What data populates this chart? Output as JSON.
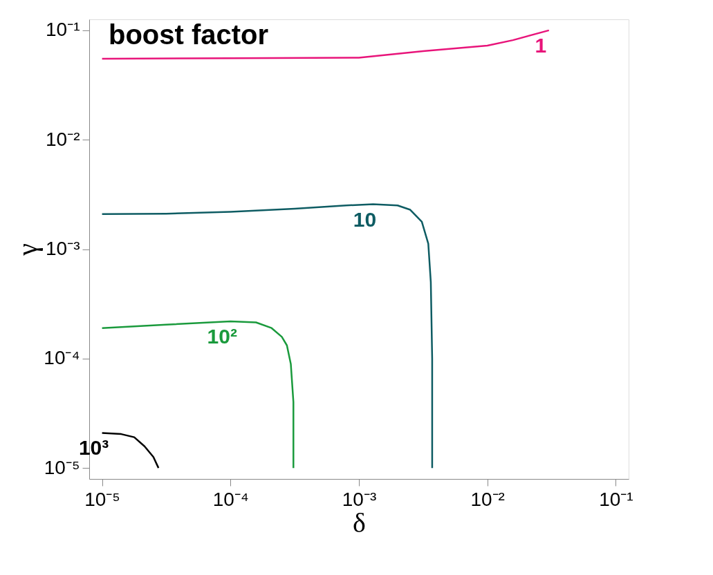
{
  "chart_data": {
    "type": "line",
    "title": "boost factor",
    "xlabel": "δ",
    "ylabel": "γ",
    "log": "xy",
    "grid": false,
    "legend": false,
    "marker": "none",
    "line_style": "solid",
    "xlim": [
      7.94e-06,
      0.126
    ],
    "ylim": [
      7.94e-06,
      0.126
    ],
    "xticks": [
      {
        "value": 1e-05,
        "label": "10⁻⁵"
      },
      {
        "value": 0.0001,
        "label": "10⁻⁴"
      },
      {
        "value": 0.001,
        "label": "10⁻³"
      },
      {
        "value": 0.01,
        "label": "10⁻²"
      },
      {
        "value": 0.1,
        "label": "10⁻¹"
      }
    ],
    "yticks": [
      {
        "value": 1e-05,
        "label": "10⁻⁵"
      },
      {
        "value": 0.0001,
        "label": "10⁻⁴"
      },
      {
        "value": 0.001,
        "label": "10⁻³"
      },
      {
        "value": 0.01,
        "label": "10⁻²"
      },
      {
        "value": 0.1,
        "label": "10⁻¹"
      }
    ],
    "series": [
      {
        "name": "1",
        "color": "#e8147a",
        "x": [
          1e-05,
          0.0001,
          0.001,
          0.00316,
          0.01,
          0.0158,
          0.0302
        ],
        "values": [
          0.055,
          0.0556,
          0.0562,
          0.0646,
          0.0724,
          0.0813,
          0.1
        ]
      },
      {
        "name": "10",
        "color": "#0e5c63",
        "x": [
          1e-05,
          3.16e-05,
          0.0001,
          0.000316,
          0.000794,
          0.00129,
          0.002,
          0.00251,
          0.00309,
          0.00347,
          0.00363,
          0.00372,
          0.00372
        ],
        "values": [
          0.00209,
          0.00211,
          0.00219,
          0.00234,
          0.00251,
          0.00257,
          0.00251,
          0.00229,
          0.00178,
          0.00112,
          0.0005,
          0.0001,
          1e-05
        ]
      },
      {
        "name": "10²",
        "color": "#1a9a3c",
        "x": [
          1e-05,
          3.16e-05,
          0.0001,
          0.000158,
          0.000209,
          0.000251,
          0.000275,
          0.000295,
          0.000309,
          0.000309
        ],
        "values": [
          0.00019,
          0.000204,
          0.000219,
          0.000214,
          0.00019,
          0.000158,
          0.000132,
          8.9e-05,
          4e-05,
          1e-05
        ]
      },
      {
        "name": "10³",
        "color": "#000000",
        "x": [
          1e-05,
          1.41e-05,
          1.78e-05,
          2.14e-05,
          2.51e-05,
          2.75e-05
        ],
        "values": [
          2.09e-05,
          2.04e-05,
          1.91e-05,
          1.58e-05,
          1.26e-05,
          1e-05
        ]
      }
    ]
  }
}
